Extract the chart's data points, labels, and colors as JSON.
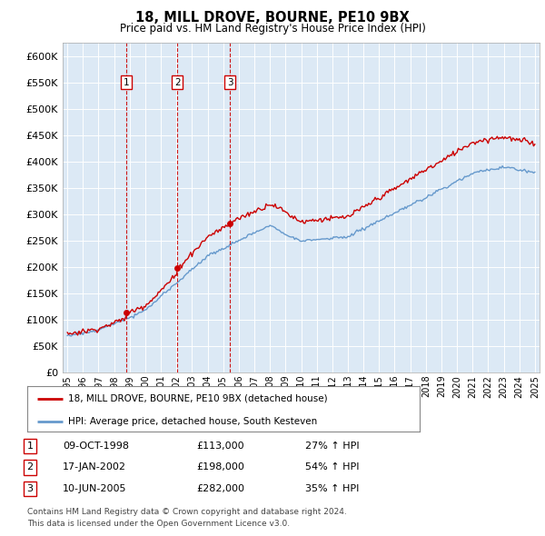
{
  "title": "18, MILL DROVE, BOURNE, PE10 9BX",
  "subtitle": "Price paid vs. HM Land Registry's House Price Index (HPI)",
  "ylabel_ticks": [
    "£0",
    "£50K",
    "£100K",
    "£150K",
    "£200K",
    "£250K",
    "£300K",
    "£350K",
    "£400K",
    "£450K",
    "£500K",
    "£550K",
    "£600K"
  ],
  "ytick_values": [
    0,
    50000,
    100000,
    150000,
    200000,
    250000,
    300000,
    350000,
    400000,
    450000,
    500000,
    550000,
    600000
  ],
  "ylim": [
    0,
    625000
  ],
  "xlim_start": 1994.7,
  "xlim_end": 2025.3,
  "xticks": [
    1995,
    1996,
    1997,
    1998,
    1999,
    2000,
    2001,
    2002,
    2003,
    2004,
    2005,
    2006,
    2007,
    2008,
    2009,
    2010,
    2011,
    2012,
    2013,
    2014,
    2015,
    2016,
    2017,
    2018,
    2019,
    2020,
    2021,
    2022,
    2023,
    2024,
    2025
  ],
  "chart_bg": "#dce9f5",
  "hpi_color": "#6699cc",
  "price_color": "#cc0000",
  "vline_color": "#cc0000",
  "grid_color": "#ffffff",
  "sale_points": [
    {
      "year": 1998.77,
      "price": 113000,
      "label": "1"
    },
    {
      "year": 2002.05,
      "price": 198000,
      "label": "2"
    },
    {
      "year": 2005.44,
      "price": 282000,
      "label": "3"
    }
  ],
  "legend_entries": [
    {
      "label": "18, MILL DROVE, BOURNE, PE10 9BX (detached house)",
      "color": "#cc0000"
    },
    {
      "label": "HPI: Average price, detached house, South Kesteven",
      "color": "#6699cc"
    }
  ],
  "table_rows": [
    {
      "num": "1",
      "date": "09-OCT-1998",
      "price": "£113,000",
      "change": "27% ↑ HPI"
    },
    {
      "num": "2",
      "date": "17-JAN-2002",
      "price": "£198,000",
      "change": "54% ↑ HPI"
    },
    {
      "num": "3",
      "date": "10-JUN-2005",
      "price": "£282,000",
      "change": "35% ↑ HPI"
    }
  ],
  "footnote1": "Contains HM Land Registry data © Crown copyright and database right 2024.",
  "footnote2": "This data is licensed under the Open Government Licence v3.0.",
  "background_color": "#ffffff"
}
